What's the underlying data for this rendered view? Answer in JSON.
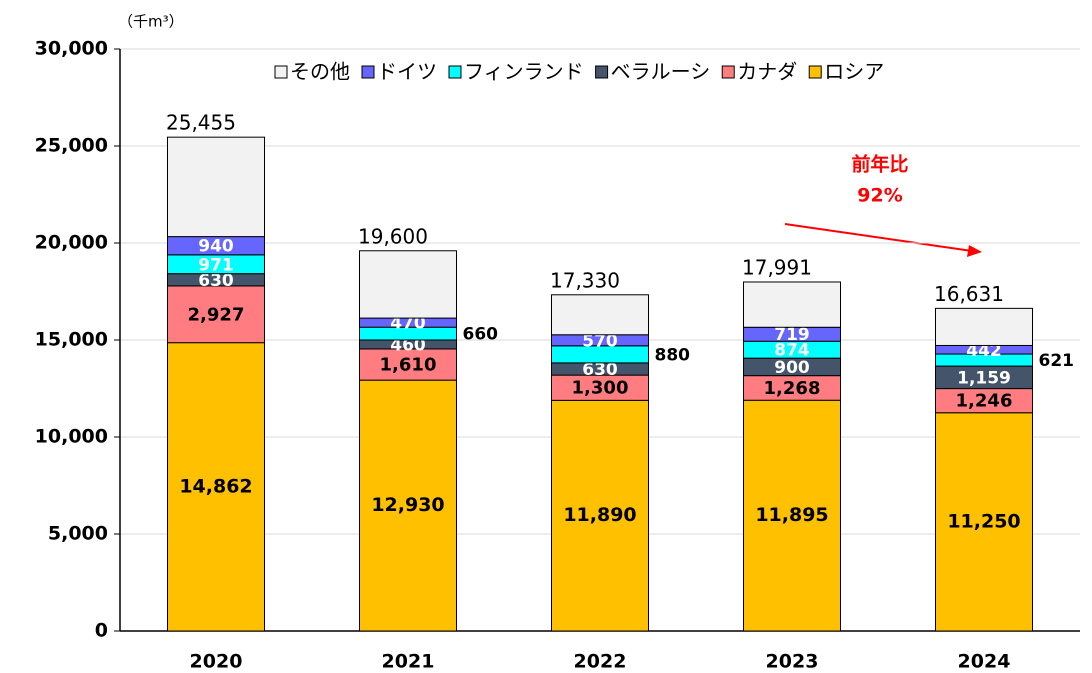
{
  "chart_data": {
    "type": "stacked_bar",
    "unit_label": "（千m³）",
    "categories": [
      "2020",
      "2021",
      "2022",
      "2023",
      "2024"
    ],
    "series": [
      {
        "name": "ロシア",
        "color": "#FFC000",
        "values": [
          14862,
          12930,
          11890,
          11895,
          11250
        ],
        "value_labels": [
          "14,862",
          "12,930",
          "11,890",
          "11,895",
          "11,250"
        ]
      },
      {
        "name": "カナダ",
        "color": "#FF7C80",
        "values": [
          2927,
          1610,
          1300,
          1268,
          1246
        ],
        "value_labels": [
          "2,927",
          "1,610",
          "1,300",
          "1,268",
          "1,246"
        ]
      },
      {
        "name": "ベラルーシ",
        "color": "#44546A",
        "values": [
          630,
          460,
          630,
          900,
          1159
        ],
        "value_labels": [
          "630",
          "460",
          "630",
          "900",
          "1,159"
        ]
      },
      {
        "name": "フィンランド",
        "color": "#00FFFF",
        "values": [
          971,
          660,
          880,
          874,
          621
        ]
      },
      {
        "name": "ドイツ",
        "color": "#6666FF",
        "values": [
          940,
          470,
          570,
          719,
          442
        ]
      },
      {
        "name": "その他",
        "color": "#F2F2F2",
        "values": [
          5125,
          3470,
          2060,
          2335,
          1913
        ]
      }
    ],
    "totals": {
      "values": [
        25455,
        19600,
        17330,
        17991,
        16631
      ],
      "value_labels": [
        "25,455",
        "19,600",
        "17,330",
        "17,991",
        "16,631"
      ]
    },
    "annotation": [
      "前年比",
      "92%"
    ],
    "annotation_color": "#FF0000",
    "ylim": [
      0,
      30000
    ],
    "yticks": [
      0,
      {
        "value": 5000,
        "label": "5,000"
      },
      {
        "value": 10000,
        "label": "10,000"
      },
      {
        "value": 15000,
        "label": "15,000"
      },
      {
        "value": 20000,
        "label": "20,000"
      },
      {
        "value": 25000,
        "label": "25,000"
      },
      {
        "value": 30000,
        "label": "30,000"
      }
    ],
    "grid": true
  }
}
